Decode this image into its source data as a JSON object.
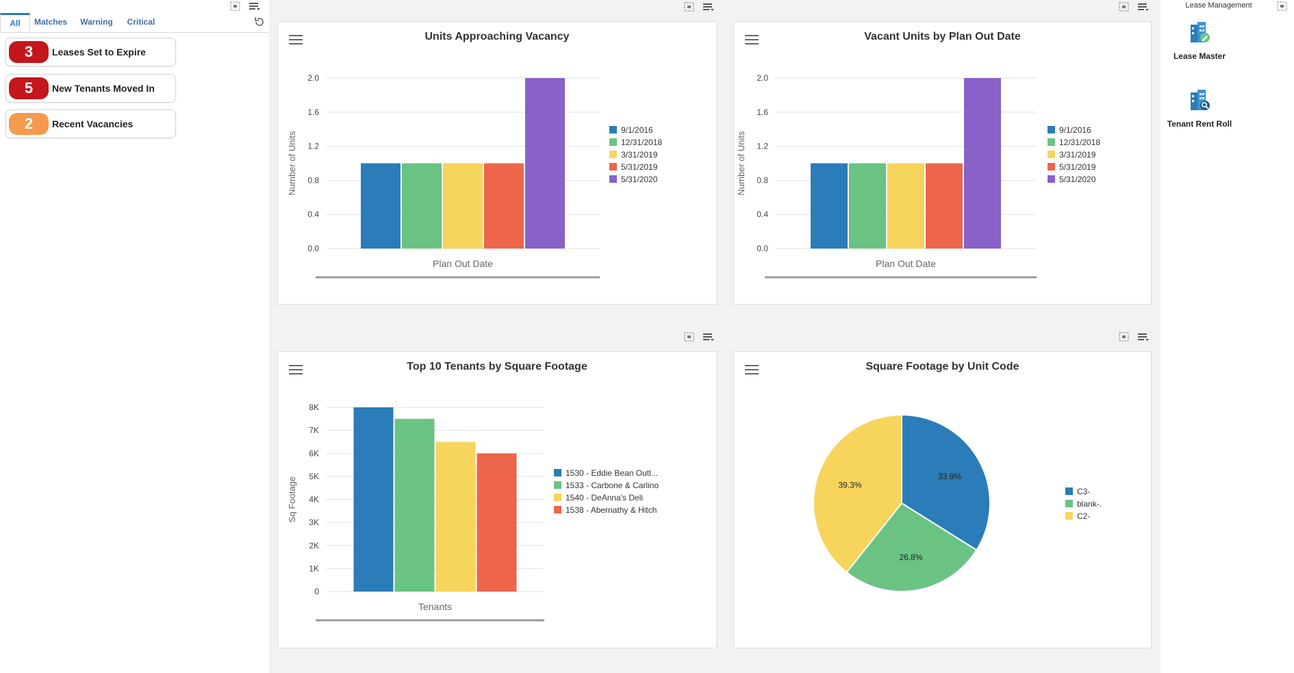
{
  "left": {
    "tabs": [
      "All",
      "Matches",
      "Warning",
      "Critical"
    ],
    "kpis": [
      {
        "count": "3",
        "label": "Leases Set to Expire",
        "color": "#c4161c"
      },
      {
        "count": "5",
        "label": "New Tenants Moved In",
        "color": "#c4161c"
      },
      {
        "count": "2",
        "label": "Recent Vacancies",
        "color": "#f59a4c"
      }
    ]
  },
  "right": {
    "title": "Lease Management",
    "tiles": [
      {
        "label": "Lease Master"
      },
      {
        "label": "Tenant Rent Roll"
      }
    ]
  },
  "colors": {
    "blue": "#2a7db8",
    "green": "#6ac383",
    "yellow": "#f7d45c",
    "red": "#ed654a",
    "purple": "#8862c9"
  },
  "chart_data": [
    {
      "type": "bar",
      "title": "Units Approaching Vacancy",
      "xlabel": "Plan Out Date",
      "ylabel": "Number of Units",
      "ylim": [
        0,
        2.0
      ],
      "yticks": [
        "0.0",
        "0.4",
        "0.8",
        "1.2",
        "1.6",
        "2.0"
      ],
      "series": [
        {
          "name": "9/1/2016",
          "values": [
            1
          ]
        },
        {
          "name": "12/31/2018",
          "values": [
            1
          ]
        },
        {
          "name": "3/31/2019",
          "values": [
            1
          ]
        },
        {
          "name": "5/31/2019",
          "values": [
            1
          ]
        },
        {
          "name": "5/31/2020",
          "values": [
            2
          ]
        }
      ]
    },
    {
      "type": "bar",
      "title": "Vacant Units by Plan Out Date",
      "xlabel": "Plan Out Date",
      "ylabel": "Number of Units",
      "ylim": [
        0,
        2.0
      ],
      "yticks": [
        "0.0",
        "0.4",
        "0.8",
        "1.2",
        "1.6",
        "2.0"
      ],
      "series": [
        {
          "name": "9/1/2016",
          "values": [
            1
          ]
        },
        {
          "name": "12/31/2018",
          "values": [
            1
          ]
        },
        {
          "name": "3/31/2019",
          "values": [
            1
          ]
        },
        {
          "name": "5/31/2019",
          "values": [
            1
          ]
        },
        {
          "name": "5/31/2020",
          "values": [
            2
          ]
        }
      ]
    },
    {
      "type": "bar",
      "title": "Top 10 Tenants by Square Footage",
      "xlabel": "Tenants",
      "ylabel": "Sq Footage",
      "ylim": [
        0,
        8000
      ],
      "yticks": [
        "0",
        "1K",
        "2K",
        "3K",
        "4K",
        "5K",
        "6K",
        "7K",
        "8K"
      ],
      "series": [
        {
          "name": "1530 - Eddie Bean Outl...",
          "values": [
            8000
          ]
        },
        {
          "name": "1533 - Carbone & Carlino",
          "values": [
            7500
          ]
        },
        {
          "name": "1540 - DeAnna's Deli",
          "values": [
            6500
          ]
        },
        {
          "name": "1538 - Abernathy & Hitch",
          "values": [
            6000
          ]
        }
      ]
    },
    {
      "type": "pie",
      "title": "Square Footage by Unit Code",
      "slices": [
        {
          "name": "C3-",
          "value": 33.9,
          "label": "33.9%"
        },
        {
          "name": "blank-.",
          "value": 26.8,
          "label": "26.8%"
        },
        {
          "name": "C2-",
          "value": 39.3,
          "label": "39.3%"
        }
      ]
    }
  ]
}
